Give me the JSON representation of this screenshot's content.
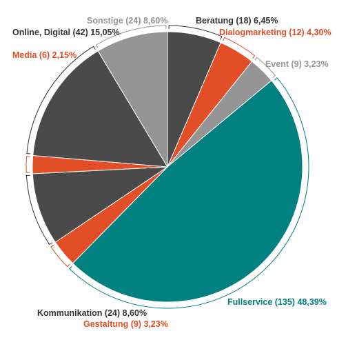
{
  "chart_data": {
    "type": "pie",
    "start_angle_deg": 0,
    "direction": "clockwise",
    "slices": [
      {
        "name": "Beratung",
        "count": 18,
        "percent": 6.45,
        "label": "Beratung (18) 6,45%",
        "color": "#4a4a4b",
        "label_color": "#333333"
      },
      {
        "name": "Dialogmarketing",
        "count": 12,
        "percent": 4.3,
        "label": "Dialogmarketing (12) 4,30%",
        "color": "#e24e26",
        "label_color": "#e24e26"
      },
      {
        "name": "Event",
        "count": 9,
        "percent": 3.23,
        "label": "Event (9) 3,23%",
        "color": "#959595",
        "label_color": "#959595"
      },
      {
        "name": "Fullservice",
        "count": 135,
        "percent": 48.39,
        "label": "Fullservice (135) 48,39%",
        "color": "#00807f",
        "label_color": "#00807f"
      },
      {
        "name": "Gestaltung",
        "count": 9,
        "percent": 3.23,
        "label": "Gestaltung (9) 3,23%",
        "color": "#e24e26",
        "label_color": "#e24e26"
      },
      {
        "name": "Kommunikation",
        "count": 24,
        "percent": 8.6,
        "label": "Kommunikation (24) 8,60%",
        "color": "#4a4a4b",
        "label_color": "#333333"
      },
      {
        "name": "Media",
        "count": 6,
        "percent": 2.15,
        "label": "Media (6) 2,15%",
        "color": "#e24e26",
        "label_color": "#e24e26"
      },
      {
        "name": "Online, Digital",
        "count": 42,
        "percent": 15.05,
        "label": "Online, Digital (42) 15,05%",
        "color": "#4a4a4b",
        "label_color": "#333333"
      },
      {
        "name": "Sonstige",
        "count": 24,
        "percent": 8.6,
        "label": "Sonstige (24) 8,60%",
        "color": "#959595",
        "label_color": "#959595"
      }
    ]
  }
}
